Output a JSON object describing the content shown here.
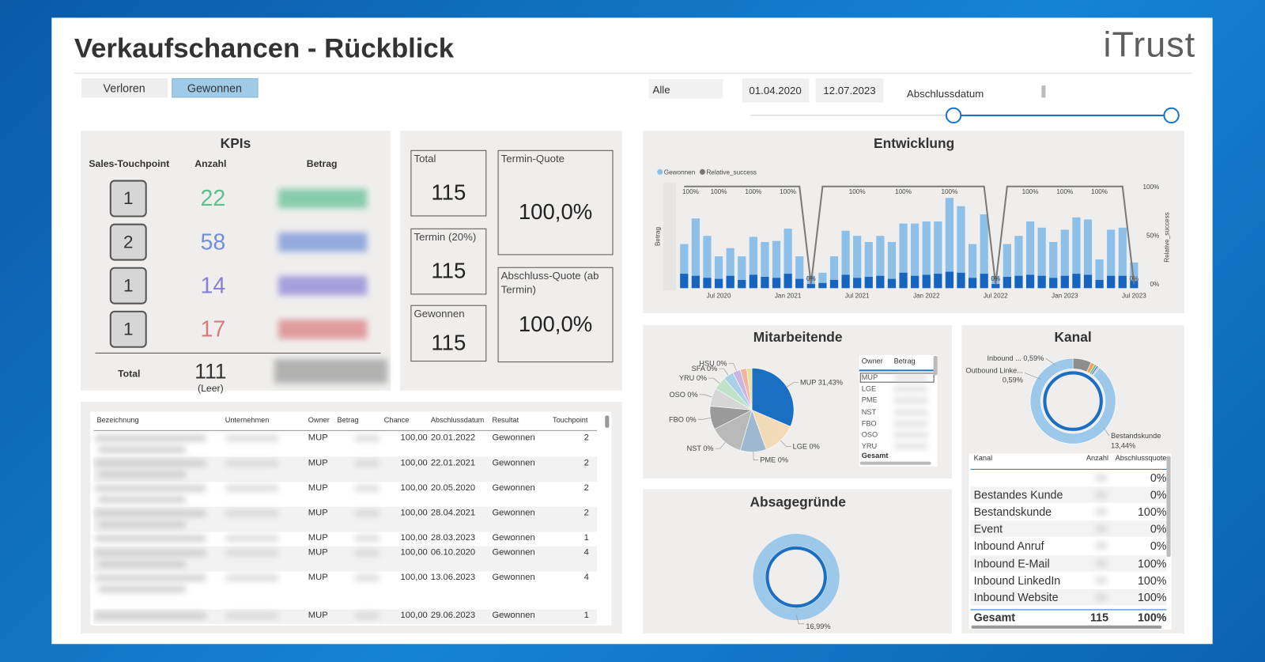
{
  "header": {
    "title": "Verkaufschancen - Rückblick",
    "logo": "iTrust"
  },
  "filters": {
    "tabs": [
      "Verloren",
      "Gewonnen"
    ],
    "active_tab": 1,
    "dropdown": "Alle",
    "date_from": "01.04.2020",
    "date_to": "12.07.2023",
    "slider_label": "Abschlussdatum"
  },
  "kpis": {
    "title": "KPIs",
    "columns": [
      "Sales-Touchpoint",
      "Anzahl",
      "Betrag"
    ],
    "rows": [
      {
        "touchpoint": 1,
        "count": 22,
        "color": "#5cbf8f"
      },
      {
        "touchpoint": 2,
        "count": 58,
        "color": "#6f8fd8"
      },
      {
        "touchpoint": 1,
        "count": 14,
        "color": "#8a7fd6"
      },
      {
        "touchpoint": 1,
        "count": 17,
        "color": "#d97a7a"
      }
    ],
    "total_label": "Total",
    "total": 111,
    "total_note": "(Leer)"
  },
  "cards": [
    {
      "label": "Total",
      "value": 115
    },
    {
      "label": "Termin (20%)",
      "value": 115
    },
    {
      "label": "Gewonnen",
      "value": 115
    },
    {
      "label": "Termin-Quote",
      "value": "100,0%"
    },
    {
      "label": "Abschluss-Quote (ab Termin)",
      "value": "100,0%"
    }
  ],
  "entwicklung": {
    "title": "Entwicklung",
    "type": "bar",
    "y_label": "Betrag",
    "y2_label": "Relative_success",
    "legend": "top-left",
    "categories": [
      null,
      null,
      null,
      "Jul 2020",
      null,
      null,
      null,
      null,
      null,
      "Jan 2021",
      null,
      null,
      null,
      null,
      null,
      "Jul 2021",
      null,
      null,
      null,
      null,
      null,
      "Jan 2022",
      null,
      null,
      null,
      null,
      null,
      "Jul 2022",
      null,
      null,
      null,
      null,
      null,
      "Jan 2023",
      null,
      null,
      null,
      null,
      null,
      "Jul 2023"
    ],
    "ylim": [
      0,
      100
    ],
    "y2lim": [
      0,
      100
    ],
    "y2ticks": [
      {
        "value": 0,
        "label": "0%"
      },
      {
        "value": 50,
        "label": "50%"
      },
      {
        "value": 100,
        "label": "100%"
      }
    ],
    "series": [
      {
        "name": "Gewonnen",
        "color": "#8cc0e8",
        "values": [
          43,
          68,
          51,
          31,
          39,
          31,
          50,
          45,
          46,
          58,
          31,
          12,
          15,
          31,
          56,
          51,
          45,
          51,
          45,
          63,
          63,
          65,
          65,
          88,
          80,
          43,
          72,
          12,
          43,
          51,
          65,
          59,
          45,
          57,
          69,
          67,
          28,
          57,
          59,
          25
        ]
      },
      {
        "color": "#1565c0",
        "values": [
          14,
          12,
          10,
          9,
          12,
          8,
          13,
          11,
          10,
          14,
          9,
          4,
          5,
          8,
          13,
          10,
          11,
          12,
          9,
          15,
          12,
          13,
          14,
          16,
          15,
          10,
          14,
          4,
          11,
          12,
          13,
          12,
          10,
          12,
          14,
          13,
          8,
          12,
          12,
          7
        ]
      },
      {
        "name": "Relative_success",
        "color": "#7a7a7a",
        "axis": "y2",
        "type": "line",
        "values": [
          100,
          100,
          100,
          100,
          100,
          100,
          100,
          100,
          100,
          100,
          100,
          0,
          100,
          100,
          100,
          100,
          100,
          100,
          100,
          100,
          100,
          100,
          100,
          100,
          100,
          100,
          100,
          0,
          100,
          100,
          100,
          100,
          100,
          100,
          100,
          100,
          100,
          100,
          100,
          0
        ],
        "value_labels": [
          "100%",
          null,
          null,
          "100%",
          null,
          null,
          "100%",
          null,
          null,
          "100%",
          null,
          "0%",
          null,
          null,
          null,
          "100%",
          null,
          null,
          null,
          "100%",
          null,
          null,
          null,
          "100%",
          null,
          null,
          null,
          "0%",
          null,
          null,
          "100%",
          null,
          null,
          "100%",
          null,
          null,
          "100%",
          null,
          null,
          "0%"
        ]
      }
    ]
  },
  "mitarbeitende": {
    "title": "Mitarbeitende",
    "type": "pie",
    "slices": [
      {
        "label": "MUP 31,43%",
        "value": 31.43,
        "color": "#1a6fc2"
      },
      {
        "label": "LGE 0%",
        "value": 13,
        "color": "#f1dbb6"
      },
      {
        "label": "PME 0%",
        "value": 10,
        "color": "#9db8cf"
      },
      {
        "label": "NST 0%",
        "value": 13,
        "color": "#b9b9b9"
      },
      {
        "label": "FBO 0%",
        "value": 9,
        "color": "#9a9a9a"
      },
      {
        "label": "OSO 0%",
        "value": 7,
        "color": "#d6d6d6"
      },
      {
        "label": "YRU 0%",
        "value": 5,
        "color": "#bfe3c8"
      },
      {
        "label": "SFA 0%",
        "value": 4,
        "color": "#a8d0e8"
      },
      {
        "label": "HSU 0%",
        "value": 3,
        "color": "#c9b6e0"
      },
      {
        "value": 2.5,
        "color": "#f2b6a0"
      },
      {
        "value": 2,
        "color": "#e8e0a0"
      }
    ],
    "table": {
      "columns": [
        "Owner",
        "Betrag"
      ],
      "rows": [
        "MUP",
        "LGE",
        "PME",
        "NST",
        "FBO",
        "OSO",
        "YRU"
      ],
      "total": "Gesamt"
    }
  },
  "kanal": {
    "title": "Kanal",
    "type": "donut",
    "slices": [
      {
        "value": 7,
        "color": "#8d8d8d"
      },
      {
        "value": 1.5,
        "color": "#f0a35a"
      },
      {
        "value": 1,
        "color": "#7cc08a"
      },
      {
        "value": 0.59,
        "color": "#1a6fc2"
      },
      {
        "value": 0.59,
        "color": "#c9b6e0"
      },
      {
        "value": 89.3,
        "color": "#9cc8ea"
      }
    ],
    "annotations": [
      {
        "text": "Inbound ... 0,59%"
      },
      {
        "text": "Outbound Linke...",
        "sub": "0,59%"
      },
      {
        "text": "Bestandskunde",
        "sub": "13,44%"
      }
    ],
    "table": {
      "columns": [
        "Kanal",
        "Anzahl",
        "Abschlussquote"
      ],
      "rows": [
        [
          null,
          "0%"
        ],
        [
          "Bestandes Kunde",
          "0%"
        ],
        [
          "Bestandskunde",
          "100%"
        ],
        [
          "Event",
          "0%"
        ],
        [
          "Inbound Anruf",
          "0%"
        ],
        [
          "Inbound E-Mail",
          "100%"
        ],
        [
          "Inbound LinkedIn",
          "100%"
        ],
        [
          "Inbound Website",
          "100%"
        ]
      ],
      "total": [
        "Gesamt",
        115,
        "100%"
      ]
    }
  },
  "absagegruende": {
    "title": "Absagegründe",
    "label": "16,99%"
  },
  "table": {
    "columns": [
      "Bezeichnung",
      "Unternehmen",
      "Owner",
      "Betrag",
      "Chance",
      "Abschlussdatum",
      "Resultat",
      "Touchpoint"
    ],
    "rows": [
      [
        "MUP",
        "100,00",
        "20.01.2022",
        "Gewonnen",
        2
      ],
      [
        "MUP",
        "100,00",
        "22.01.2021",
        "Gewonnen",
        2
      ],
      [
        "MUP",
        "100,00",
        "20.05.2020",
        "Gewonnen",
        2
      ],
      [
        "MUP",
        "100,00",
        "28.04.2021",
        "Gewonnen",
        2
      ],
      [
        "MUP",
        "100,00",
        "28.03.2023",
        "Gewonnen",
        1
      ],
      [
        "MUP",
        "100,00",
        "06.10.2020",
        "Gewonnen",
        4
      ],
      [
        "MUP",
        "100,00",
        "13.06.2023",
        "Gewonnen",
        4
      ],
      [
        "MUP",
        "100,00",
        "29.06.2023",
        "Gewonnen",
        1
      ]
    ]
  }
}
